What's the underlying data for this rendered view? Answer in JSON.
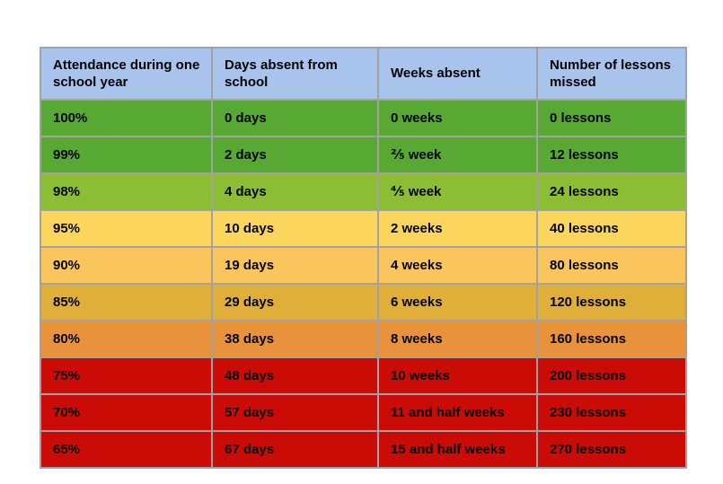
{
  "chart_data": {
    "type": "table",
    "title": "",
    "columns": [
      "Attendance during one school year",
      "Days absent from school",
      "Weeks absent",
      "Number of lessons missed"
    ],
    "rows": [
      [
        "100%",
        "0 days",
        "0 weeks",
        "0 lessons"
      ],
      [
        "99%",
        "2 days",
        "⅖ week",
        "12 lessons"
      ],
      [
        "98%",
        "4 days",
        "⅘ week",
        "24 lessons"
      ],
      [
        "95%",
        "10 days",
        "2 weeks",
        "40 lessons"
      ],
      [
        "90%",
        "19 days",
        "4 weeks",
        "80 lessons"
      ],
      [
        "85%",
        "29 days",
        "6 weeks",
        "120 lessons"
      ],
      [
        "80%",
        "38 days",
        "8 weeks",
        "160 lessons"
      ],
      [
        "75%",
        "48 days",
        "10 weeks",
        "200 lessons"
      ],
      [
        "70%",
        "57 days",
        "11 and half weeks",
        "230 lessons"
      ],
      [
        "65%",
        "67 days",
        "15 and half weeks",
        "270 lessons"
      ]
    ],
    "row_colors": [
      "#58A834",
      "#58A834",
      "#8BBD35",
      "#FCD65C",
      "#FBC55E",
      "#E0AF3A",
      "#E8923C",
      "#CB0B06",
      "#CB0B06",
      "#CB0B06"
    ],
    "header_color": "#A8C4EC",
    "border_color": "#A2A2A2",
    "text_color": "#000000",
    "background_color": "#FFFFFF"
  }
}
